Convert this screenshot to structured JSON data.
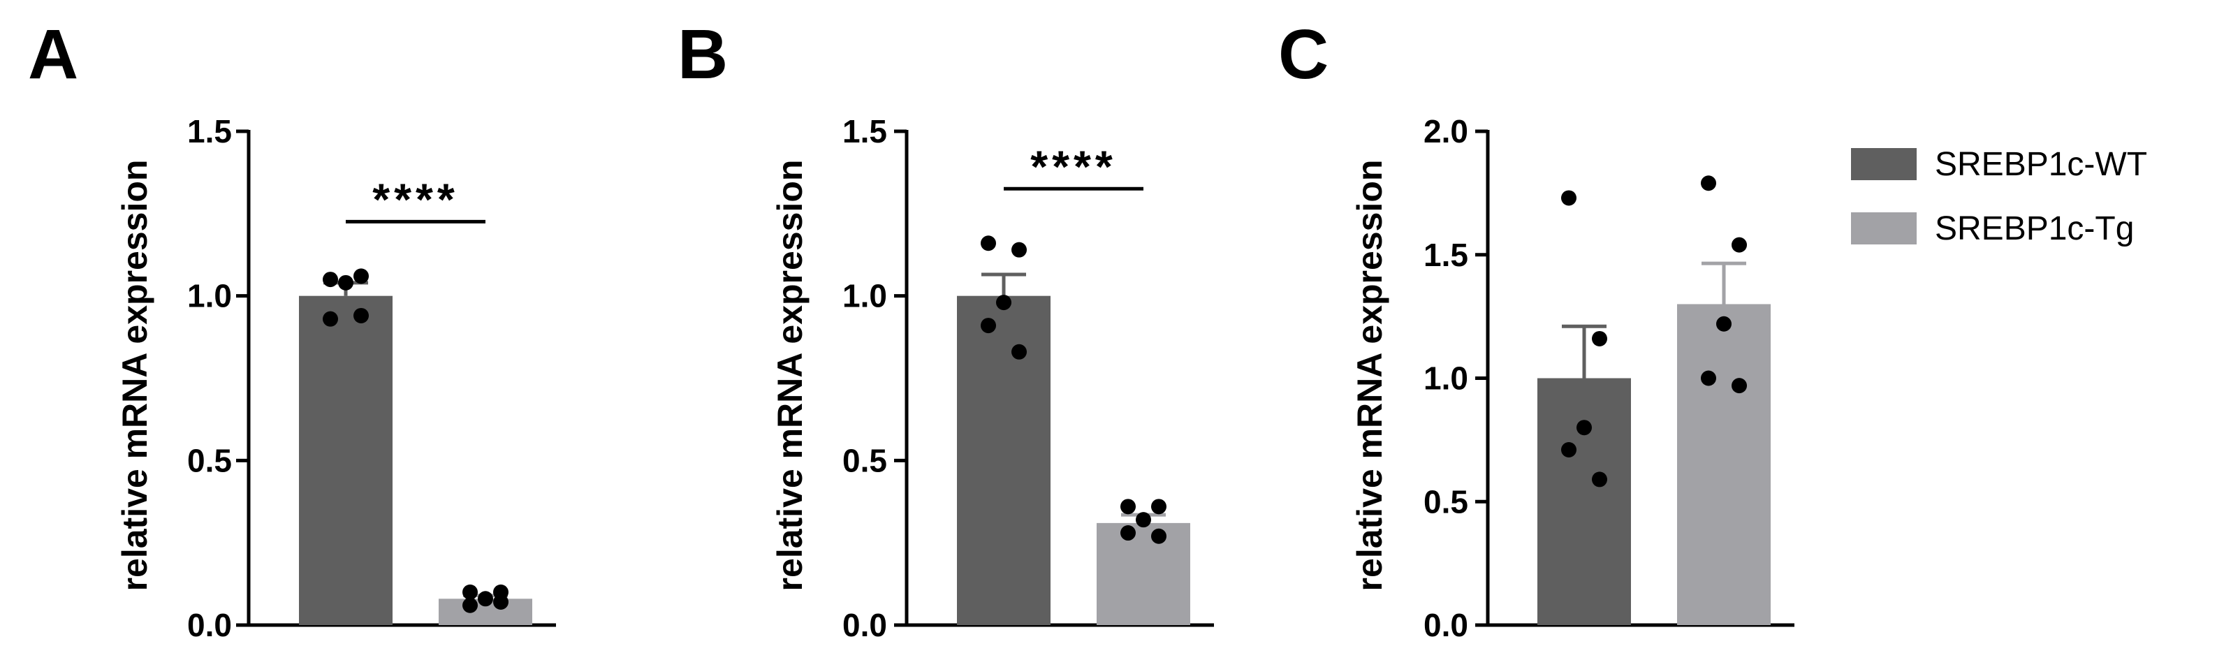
{
  "colors": {
    "wt": "#5f5f5f",
    "tg": "#a2a2a6",
    "axis": "#000000",
    "dot": "#000000"
  },
  "legend": {
    "position": "right",
    "entries": [
      "SREBP1c-WT",
      "SREBP1c-Tg"
    ]
  },
  "chart_data": [
    {
      "type": "bar",
      "panel_label": "A",
      "ylabel": "relative mRNA expression",
      "ylim": [
        0,
        1.5
      ],
      "ticks": [
        "0.0",
        "0.5",
        "1.0",
        "1.5"
      ],
      "tick_values": [
        0,
        0.5,
        1.0,
        1.5
      ],
      "significance": "****",
      "categories": [
        "SREBP1c-WT",
        "SREBP1c-Tg"
      ],
      "series": [
        {
          "name": "SREBP1c-WT",
          "mean": 1.0,
          "sem": 0.04,
          "points": [
            1.05,
            1.06,
            1.04,
            0.93,
            0.94
          ]
        },
        {
          "name": "SREBP1c-Tg",
          "mean": 0.08,
          "sem": 0.01,
          "points": [
            0.1,
            0.1,
            0.08,
            0.06,
            0.07
          ]
        }
      ]
    },
    {
      "type": "bar",
      "panel_label": "B",
      "ylabel": "relative mRNA expression",
      "ylim": [
        0,
        1.5
      ],
      "ticks": [
        "0.0",
        "0.5",
        "1.0",
        "1.5"
      ],
      "tick_values": [
        0,
        0.5,
        1.0,
        1.5
      ],
      "significance": "****",
      "categories": [
        "SREBP1c-WT",
        "SREBP1c-Tg"
      ],
      "series": [
        {
          "name": "SREBP1c-WT",
          "mean": 1.0,
          "sem": 0.065,
          "points": [
            1.16,
            1.14,
            0.98,
            0.91,
            0.83
          ]
        },
        {
          "name": "SREBP1c-Tg",
          "mean": 0.31,
          "sem": 0.025,
          "points": [
            0.36,
            0.36,
            0.32,
            0.28,
            0.27
          ]
        }
      ]
    },
    {
      "type": "bar",
      "panel_label": "C",
      "ylabel": "relative mRNA expression",
      "ylim": [
        0,
        2.0
      ],
      "ticks": [
        "0.0",
        "0.5",
        "1.0",
        "1.5",
        "2.0"
      ],
      "tick_values": [
        0,
        0.5,
        1.0,
        1.5,
        2.0
      ],
      "significance": "",
      "categories": [
        "SREBP1c-WT",
        "SREBP1c-Tg"
      ],
      "series": [
        {
          "name": "SREBP1c-WT",
          "mean": 1.0,
          "sem": 0.21,
          "points": [
            1.73,
            1.16,
            0.8,
            0.71,
            0.59
          ]
        },
        {
          "name": "SREBP1c-Tg",
          "mean": 1.3,
          "sem": 0.165,
          "points": [
            1.79,
            1.54,
            1.22,
            1.0,
            0.97
          ]
        }
      ]
    }
  ]
}
